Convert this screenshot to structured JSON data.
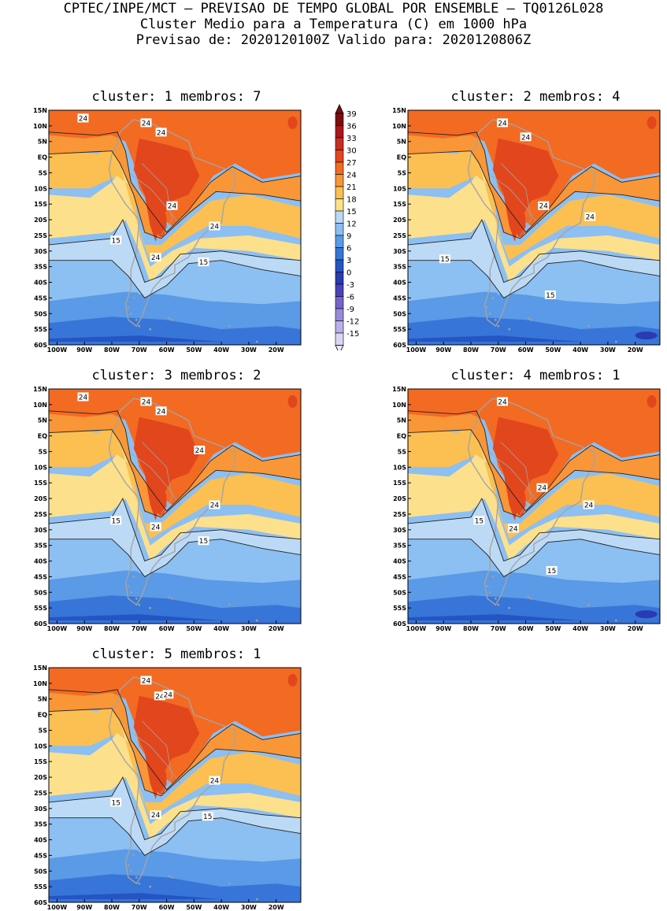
{
  "header": {
    "line1": "CPTEC/INPE/MCT – PREVISAO DE TEMPO GLOBAL POR ENSEMBLE – TQ0126L028",
    "line2": "Cluster Medio para a Temperatura (C) em 1000 hPa",
    "line3": "Previsao de: 2020120100Z   Valido para: 2020120806Z"
  },
  "lat_labels": [
    "15N",
    "10N",
    "5N",
    "EQ",
    "5S",
    "10S",
    "15S",
    "20S",
    "25S",
    "30S",
    "35S",
    "40S",
    "45S",
    "50S",
    "55S",
    "60S"
  ],
  "lon_labels": [
    "100W",
    "90W",
    "80W",
    "70W",
    "60W",
    "50W",
    "40W",
    "30W",
    "20W"
  ],
  "colorbar": {
    "labels": [
      "39",
      "36",
      "33",
      "30",
      "27",
      "24",
      "21",
      "18",
      "15",
      "12",
      "9",
      "6",
      "3",
      "0",
      "-3",
      "-6",
      "-9",
      "-12",
      "-15"
    ],
    "colors": [
      "#7a0e10",
      "#a9161b",
      "#c72d20",
      "#e2461d",
      "#f36a22",
      "#f99637",
      "#fbbf52",
      "#fde08c",
      "#bcdaf6",
      "#8cbff2",
      "#5a9ae6",
      "#3775d8",
      "#2555c2",
      "#2a3ab0",
      "#4c41b8",
      "#7464cc",
      "#988ada",
      "#bbb0e8",
      "#dcd5f4"
    ],
    "top_color": "#7a0e10",
    "bottom_color": "#ece8fa"
  },
  "panels": [
    {
      "title": "cluster: 1   membros: 7",
      "labels": [
        {
          "t": "24",
          "lon": -90.5,
          "lat": 12.5
        },
        {
          "t": "24",
          "lon": -67.5,
          "lat": 11
        },
        {
          "t": "24",
          "lon": -62,
          "lat": 8
        },
        {
          "t": "24",
          "lon": -58,
          "lat": -15.5
        },
        {
          "t": "24",
          "lon": -42.5,
          "lat": -22
        },
        {
          "t": "24",
          "lon": -64,
          "lat": -32
        },
        {
          "t": "15",
          "lon": -78.5,
          "lat": -26.5
        },
        {
          "t": "15",
          "lon": -46.5,
          "lat": -33.5
        }
      ]
    },
    {
      "title": "cluster: 2   membros: 4",
      "labels": [
        {
          "t": "24",
          "lon": -68.5,
          "lat": 11
        },
        {
          "t": "24",
          "lon": -60,
          "lat": 6.5
        },
        {
          "t": "24",
          "lon": -53.5,
          "lat": -15.5
        },
        {
          "t": "24",
          "lon": -36.5,
          "lat": -19
        },
        {
          "t": "15",
          "lon": -89.5,
          "lat": -32.5
        },
        {
          "t": "15",
          "lon": -51,
          "lat": -44
        }
      ]
    },
    {
      "title": "cluster: 3   membros: 2",
      "labels": [
        {
          "t": "24",
          "lon": -90.5,
          "lat": 12.5
        },
        {
          "t": "24",
          "lon": -67.5,
          "lat": 11
        },
        {
          "t": "24",
          "lon": -62,
          "lat": 8
        },
        {
          "t": "24",
          "lon": -48,
          "lat": -4.5
        },
        {
          "t": "24",
          "lon": -42.5,
          "lat": -22
        },
        {
          "t": "24",
          "lon": -64,
          "lat": -29
        },
        {
          "t": "15",
          "lon": -78.5,
          "lat": -27
        },
        {
          "t": "15",
          "lon": -46.5,
          "lat": -33.5
        }
      ]
    },
    {
      "title": "cluster: 4   membros: 1",
      "labels": [
        {
          "t": "24",
          "lon": -68.5,
          "lat": 11
        },
        {
          "t": "24",
          "lon": -54,
          "lat": -16.5
        },
        {
          "t": "24",
          "lon": -37,
          "lat": -22
        },
        {
          "t": "24",
          "lon": -64.5,
          "lat": -29.5
        },
        {
          "t": "15",
          "lon": -77,
          "lat": -27
        },
        {
          "t": "15",
          "lon": -50.5,
          "lat": -43
        }
      ]
    },
    {
      "title": "cluster: 5   membros: 1",
      "labels": [
        {
          "t": "24",
          "lon": -67.5,
          "lat": 11
        },
        {
          "t": "24",
          "lon": -62.5,
          "lat": 6
        },
        {
          "t": "24",
          "lon": -59.5,
          "lat": 6.5
        },
        {
          "t": "24",
          "lon": -42.5,
          "lat": -21
        },
        {
          "t": "24",
          "lon": -64,
          "lat": -32
        },
        {
          "t": "15",
          "lon": -78.5,
          "lat": -28
        },
        {
          "t": "15",
          "lon": -45,
          "lat": -32.5
        }
      ]
    }
  ]
}
